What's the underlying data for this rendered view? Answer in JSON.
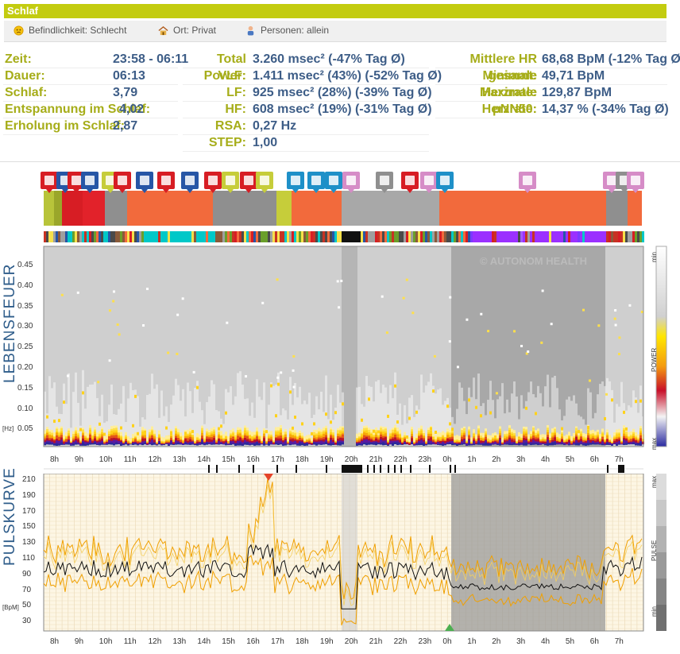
{
  "header": {
    "title": "Schlaf"
  },
  "context": {
    "mood": {
      "text": "Befindlichkeit: Schlecht",
      "icon": "sad-face-icon"
    },
    "place": {
      "text": "Ort: Privat",
      "icon": "house-icon"
    },
    "people": {
      "text": "Personen: allein",
      "icon": "person-icon"
    }
  },
  "stats_left": [
    {
      "label": "Zeit:",
      "value": "23:58 - 06:11"
    },
    {
      "label": "Dauer:",
      "value": "06:13"
    },
    {
      "label": "Schlaf:",
      "value": "3,79"
    },
    {
      "label": "Entspannung im Schlaf:",
      "value": "4,02"
    },
    {
      "label": "Erholung im Schlaf:",
      "value": "2,87"
    }
  ],
  "stats_mid": [
    {
      "label": "Total Power:",
      "value": "3.260 msec² (-47% Tag Ø)"
    },
    {
      "label": "VLF:",
      "value": "1.411 msec² (43%) (-52% Tag Ø)"
    },
    {
      "label": "LF:",
      "value": "925 msec² (28%) (-39% Tag Ø)"
    },
    {
      "label": "HF:",
      "value": "608 msec² (19%) (-31% Tag Ø)"
    },
    {
      "label": "RSA:",
      "value": "0,27 Hz"
    },
    {
      "label": "STEP:",
      "value": "1,00"
    }
  ],
  "stats_right": [
    {
      "label": "Mittlere HR gesamt:",
      "value": "68,68 BpM (-12% Tag Ø)"
    },
    {
      "label": "Minimale Herzrate:",
      "value": "49,71 BpM"
    },
    {
      "label": "Maximale Herzrate:",
      "value": "129,87 BpM"
    },
    {
      "label": "pNN50:",
      "value": "14,37 % (-34% Tag Ø)"
    }
  ],
  "spectrogram": {
    "side_label": "LEBENSFEUER",
    "unit_label": "[Hz]",
    "watermark": "© AUTONOM HEALTH",
    "y_ticks": [
      "0.45",
      "0.40",
      "0.35",
      "0.30",
      "0.25",
      "0.20",
      "0.15",
      "0.10",
      "0.05"
    ],
    "legend": {
      "top": "min",
      "mid": "POWER",
      "bottom": "max"
    }
  },
  "pulse": {
    "side_label": "PULSKURVE",
    "unit_label": "[BpM]",
    "y_ticks": [
      "210",
      "190",
      "170",
      "150",
      "130",
      "110",
      "90",
      "70",
      "50",
      "30"
    ],
    "legend": {
      "top": "max",
      "mid": "PULSE",
      "bottom": "min"
    }
  },
  "time_ticks": [
    "8h",
    "9h",
    "10h",
    "11h",
    "12h",
    "13h",
    "14h",
    "15h",
    "16h",
    "17h",
    "18h",
    "19h",
    "20h",
    "21h",
    "22h",
    "23h",
    "0h",
    "1h",
    "2h",
    "3h",
    "4h",
    "5h",
    "6h",
    "7h"
  ],
  "time_ticks_bottom": [
    "8h",
    "9h",
    "10h",
    "11h",
    "12h",
    "13h",
    "14h",
    "15h",
    "16h",
    "17h",
    "18h",
    "19h",
    "20h",
    "21h",
    "22h",
    "23h",
    "0h",
    "1h",
    "2h",
    "3h",
    "4h",
    "5h",
    "6h",
    "7h"
  ],
  "colors": {
    "brand": "#c3cc10",
    "label": "#a6ad19",
    "value": "#3d5d87",
    "sleep_shade": "#a8a8a8",
    "activity_orange": "#f26a3c"
  }
}
